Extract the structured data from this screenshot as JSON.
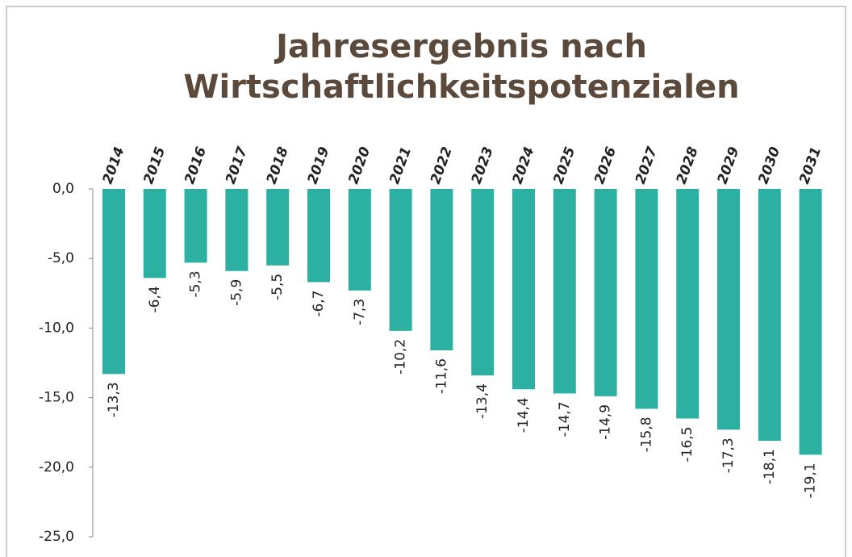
{
  "chart_data": {
    "type": "bar",
    "title": [
      "Jahresergebnis nach",
      "Wirtschaftlichkeitspotenzialen"
    ],
    "categories": [
      "2014",
      "2015",
      "2016",
      "2017",
      "2018",
      "2019",
      "2020",
      "2021",
      "2022",
      "2023",
      "2024",
      "2025",
      "2026",
      "2027",
      "2028",
      "2029",
      "2030",
      "2031"
    ],
    "values": [
      -13.3,
      -6.4,
      -5.3,
      -5.9,
      -5.5,
      -6.7,
      -7.3,
      -10.2,
      -11.6,
      -13.4,
      -14.4,
      -14.7,
      -14.9,
      -15.8,
      -16.5,
      -17.3,
      -18.1,
      -19.1
    ],
    "value_labels": [
      "-13,3",
      "-6,4",
      "-5,3",
      "-5,9",
      "-5,5",
      "-6,7",
      "-7,3",
      "-10,2",
      "-11,6",
      "-13,4",
      "-14,4",
      "-14,7",
      "-14,9",
      "-15,8",
      "-16,5",
      "-17,3",
      "-18,1",
      "-19,1"
    ],
    "color": "#2bb0a1",
    "ylim": [
      -25,
      0
    ],
    "yticks": [
      {
        "value": 0,
        "label": "0,0"
      },
      {
        "value": -5,
        "label": "-5,0"
      },
      {
        "value": -10,
        "label": "-10,0"
      },
      {
        "value": -15,
        "label": "-15,0"
      },
      {
        "value": -20,
        "label": "-20,0"
      },
      {
        "value": -25,
        "label": "-25,0"
      }
    ],
    "grid": false
  }
}
